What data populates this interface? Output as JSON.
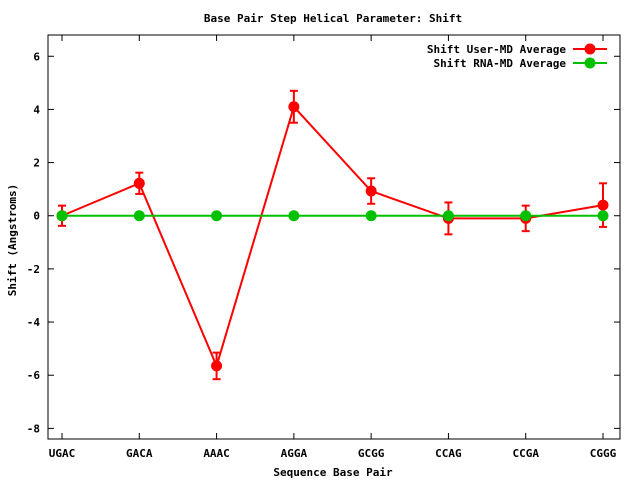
{
  "chart_data": {
    "type": "line",
    "title": "Base Pair Step Helical Parameter: Shift",
    "xlabel": "Sequence Base Pair",
    "ylabel": "Shift (Angstroms)",
    "categories": [
      "UGAC",
      "GACA",
      "AAAC",
      "AGGA",
      "GCGG",
      "CCAG",
      "CCGA",
      "CGGG"
    ],
    "ylim": [
      -8.4,
      6.8
    ],
    "yticks": [
      "-8",
      "-6",
      "-4",
      "-2",
      "0",
      "2",
      "4",
      "6"
    ],
    "ytick_values": [
      -8,
      -6,
      -4,
      -2,
      0,
      2,
      4,
      6
    ],
    "grid": false,
    "legend_position": "top-right",
    "series": [
      {
        "name": "Shift User-MD Average",
        "color": "#ff0000",
        "values": [
          0.0,
          1.22,
          -5.65,
          4.1,
          0.93,
          -0.1,
          -0.1,
          0.4
        ],
        "errors": [
          0.38,
          0.4,
          0.5,
          0.6,
          0.48,
          0.6,
          0.48,
          0.82
        ]
      },
      {
        "name": "Shift RNA-MD Average",
        "color": "#00c000",
        "values": [
          0,
          0,
          0,
          0,
          0,
          0,
          0,
          0
        ]
      }
    ]
  }
}
